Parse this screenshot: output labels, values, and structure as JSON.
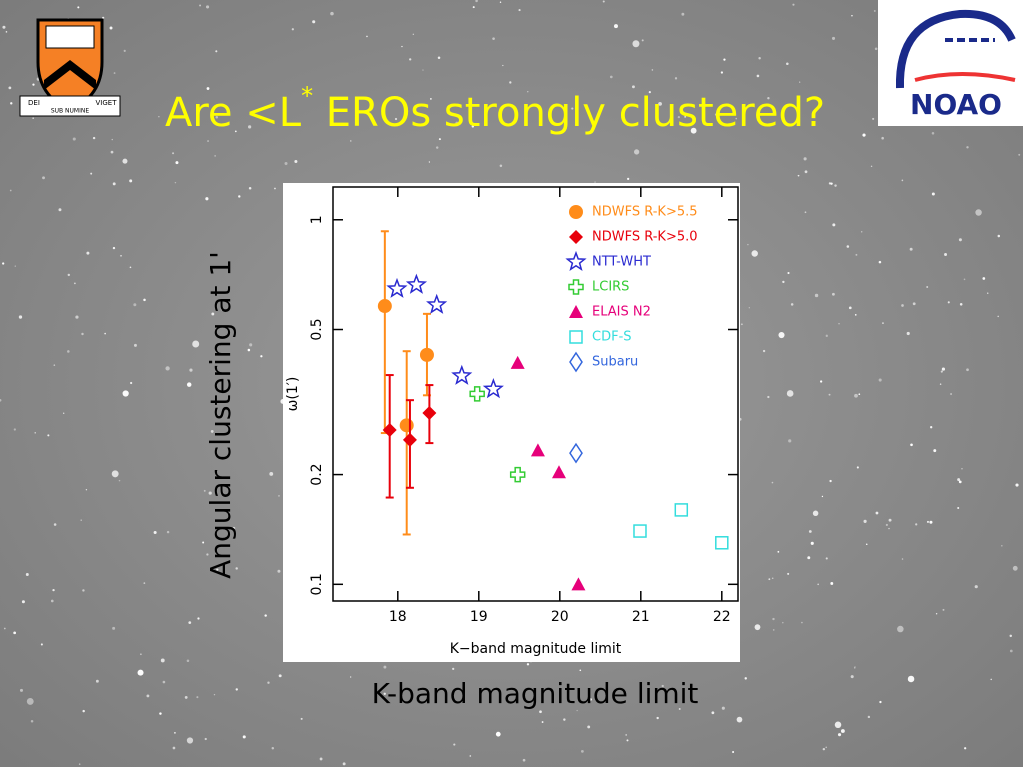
{
  "slide": {
    "title_parts": [
      "Are <L",
      "*",
      " EROs strongly clustered?"
    ],
    "outer_ylabel": "Angular clustering at 1'",
    "outer_xlabel": "K-band magnitude limit",
    "logo_left": [
      "DEI",
      "SUB NUMINE",
      "VIGET"
    ],
    "logo_right": "NOAO"
  },
  "chart_data": {
    "type": "scatter",
    "xlabel": "K−band magnitude limit",
    "ylabel": "ω(1′)",
    "xlim": [
      17.2,
      22.2
    ],
    "xticks": [
      18,
      19,
      20,
      21,
      22
    ],
    "ylim": [
      0.09,
      1.23
    ],
    "yticks": [
      0.1,
      0.2,
      0.5,
      1
    ],
    "ylog": true,
    "legend": "top-right",
    "series": [
      {
        "name": "NDWFS R-K>5.5",
        "color": "#ff8c1a",
        "marker": "circle",
        "x": [
          17.84,
          18.11,
          18.36
        ],
        "values": [
          0.58,
          0.273,
          0.426
        ],
        "lower": [
          0.26,
          0.137,
          0.33
        ],
        "upper": [
          0.93,
          0.436,
          0.552
        ]
      },
      {
        "name": "NDWFS R-K>5.0",
        "color": "#e8000b",
        "marker": "diamond",
        "x": [
          17.9,
          18.15,
          18.39
        ],
        "values": [
          0.265,
          0.249,
          0.295
        ],
        "lower": [
          0.173,
          0.184,
          0.244
        ],
        "upper": [
          0.375,
          0.32,
          0.352
        ]
      },
      {
        "name": "NTT-WHT",
        "color": "#2a2ad0",
        "marker": "star",
        "x": [
          17.99,
          18.23,
          18.48,
          18.79,
          19.18
        ],
        "values": [
          0.646,
          0.663,
          0.584,
          0.373,
          0.343
        ]
      },
      {
        "name": "LCIRS",
        "color": "#33cc33",
        "marker": "plus",
        "x": [
          18.98,
          19.48
        ],
        "values": [
          0.333,
          0.2
        ]
      },
      {
        "name": "ELAIS N2",
        "color": "#e6007a",
        "marker": "triangle",
        "x": [
          19.48,
          19.73,
          19.99,
          20.23
        ],
        "values": [
          0.405,
          0.233,
          0.203,
          0.1
        ]
      },
      {
        "name": "CDF-S",
        "color": "#33dddd",
        "marker": "square",
        "x": [
          20.99,
          21.5,
          22.0
        ],
        "values": [
          0.14,
          0.16,
          0.13
        ]
      },
      {
        "name": "Subaru",
        "color": "#3366dd",
        "marker": "open-diamond",
        "x": [
          20.2
        ],
        "values": [
          0.229
        ]
      }
    ]
  }
}
